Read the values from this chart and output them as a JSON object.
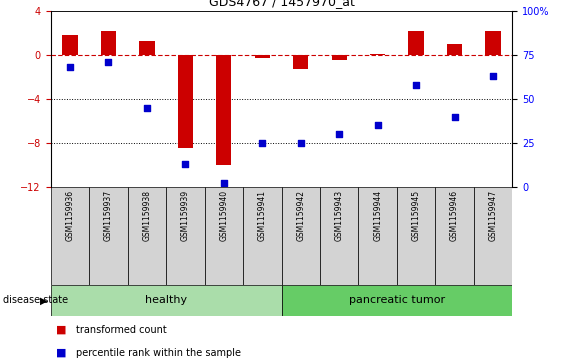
{
  "title": "GDS4767 / 1457970_at",
  "samples": [
    "GSM1159936",
    "GSM1159937",
    "GSM1159938",
    "GSM1159939",
    "GSM1159940",
    "GSM1159941",
    "GSM1159942",
    "GSM1159943",
    "GSM1159944",
    "GSM1159945",
    "GSM1159946",
    "GSM1159947"
  ],
  "transformed_count": [
    1.8,
    2.2,
    1.3,
    -8.5,
    -10.0,
    -0.3,
    -1.3,
    -0.5,
    0.1,
    2.2,
    1.0,
    2.2
  ],
  "percentile_rank": [
    68,
    71,
    45,
    13,
    2,
    25,
    25,
    30,
    35,
    58,
    40,
    63
  ],
  "bar_color": "#cc0000",
  "scatter_color": "#0000cc",
  "dashed_line_color": "#cc0000",
  "ylim_left": [
    -12,
    4
  ],
  "ylim_right": [
    0,
    100
  ],
  "yticks_left": [
    4,
    0,
    -4,
    -8,
    -12
  ],
  "yticks_right": [
    100,
    75,
    50,
    25,
    0
  ],
  "healthy_count": 6,
  "healthy_color": "#aaddaa",
  "tumor_color": "#66cc66",
  "healthy_label": "healthy",
  "tumor_label": "pancreatic tumor",
  "bar_width": 0.4,
  "legend_red_label": "transformed count",
  "legend_blue_label": "percentile rank within the sample",
  "disease_state_label": "disease state",
  "bg_color": "#ffffff",
  "tick_label_area_color": "#d3d3d3"
}
